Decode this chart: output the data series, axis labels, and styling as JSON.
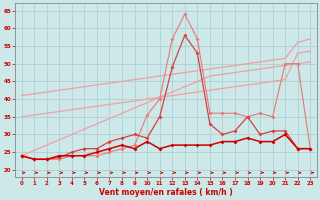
{
  "x": [
    0,
    1,
    2,
    3,
    4,
    5,
    6,
    7,
    8,
    9,
    10,
    11,
    12,
    13,
    14,
    15,
    16,
    17,
    18,
    19,
    20,
    21,
    22,
    23
  ],
  "line_slope1": [
    24,
    25.5,
    27,
    28.5,
    30,
    31.5,
    33,
    34.5,
    36,
    37.5,
    39,
    40.5,
    42,
    43.5,
    45,
    46.5,
    47,
    47.5,
    48,
    48.5,
    49,
    49.5,
    50,
    50.5
  ],
  "line_slope2": [
    41,
    41.5,
    42,
    42.5,
    43,
    43.5,
    44,
    44.5,
    45,
    45.5,
    46,
    46.5,
    47,
    47.5,
    48,
    48.5,
    49,
    49.5,
    50,
    50.5,
    51,
    51.5,
    56,
    57
  ],
  "line_slope3": [
    35,
    35.5,
    36,
    36.5,
    37,
    37.5,
    38,
    38.5,
    39,
    39.5,
    40,
    40.5,
    41,
    41.5,
    42,
    42.5,
    43,
    43.5,
    44,
    44.5,
    45,
    45.5,
    53,
    53.5
  ],
  "line_jagged1": [
    24,
    23,
    23,
    23,
    24,
    24,
    24,
    25,
    26,
    27,
    35.5,
    40,
    57,
    64,
    57,
    36,
    36,
    36,
    35,
    36,
    35,
    50,
    50,
    26
  ],
  "line_jagged2": [
    24,
    23,
    23,
    23.5,
    25,
    26,
    26,
    28,
    29,
    30,
    29,
    35,
    49,
    58,
    53,
    33,
    30,
    31,
    35,
    30,
    31,
    31,
    26,
    26
  ],
  "line_jagged3": [
    24,
    23,
    23,
    24,
    24,
    24,
    25,
    26,
    27,
    26,
    28,
    26,
    27,
    27,
    27,
    27,
    28,
    28,
    29,
    28,
    28,
    30,
    26,
    26
  ],
  "bg_color": "#cce8e8",
  "grid_color": "#aacccc",
  "color_light": "#f0a0a0",
  "color_mid_light": "#e87878",
  "color_mid": "#d84040",
  "color_dark": "#cc0000",
  "xlabel": "Vent moyen/en rafales ( km/h )",
  "ylim": [
    18,
    67
  ],
  "xlim": [
    -0.5,
    23.5
  ],
  "yticks": [
    20,
    25,
    30,
    35,
    40,
    45,
    50,
    55,
    60,
    65
  ],
  "xticks": [
    0,
    1,
    2,
    3,
    4,
    5,
    6,
    7,
    8,
    9,
    10,
    11,
    12,
    13,
    14,
    15,
    16,
    17,
    18,
    19,
    20,
    21,
    22,
    23
  ]
}
